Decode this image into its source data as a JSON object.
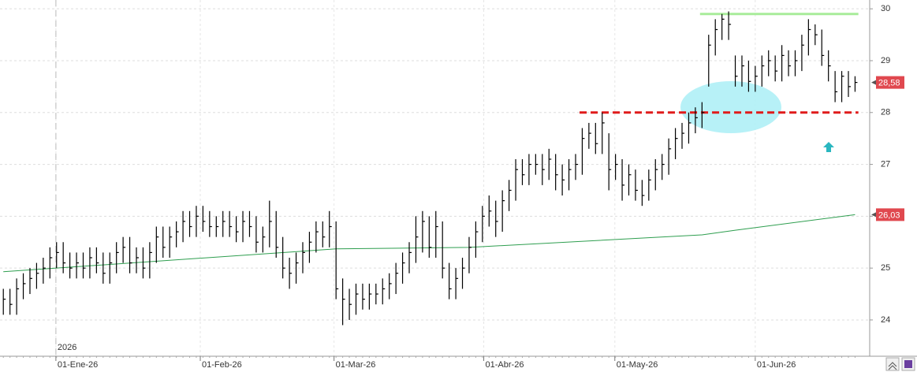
{
  "chart_data": {
    "type": "ohlc",
    "year_label": "2026",
    "xlim": [
      -0.5,
      130.2
    ],
    "xticks": [
      {
        "value": 7.9,
        "label": "01-Ene-26"
      },
      {
        "value": 29.6,
        "label": "01-Feb-26"
      },
      {
        "value": 49.7,
        "label": "01-Mar-26"
      },
      {
        "value": 72.2,
        "label": "01-Abr-26"
      },
      {
        "value": 91.9,
        "label": "01-May-26"
      },
      {
        "value": 113,
        "label": "01-Jun-26"
      }
    ],
    "ylim": [
      23.3,
      30.17
    ],
    "yticks": [
      24,
      25,
      26,
      27,
      28,
      29,
      30
    ],
    "grid": true,
    "color": "#000000",
    "high": [
      24.6,
      24.6,
      24.8,
      24.9,
      25.0,
      25.1,
      25.2,
      25.4,
      25.5,
      25.5,
      25.3,
      25.3,
      25.3,
      25.4,
      25.4,
      25.3,
      25.3,
      25.5,
      25.6,
      25.6,
      25.4,
      25.4,
      25.5,
      25.8,
      25.8,
      25.8,
      25.9,
      26.1,
      26.1,
      26.2,
      26.2,
      26.1,
      26.0,
      26.1,
      26.1,
      26.0,
      26.1,
      26.1,
      26.0,
      25.8,
      26.3,
      26.1,
      25.6,
      25.2,
      25.3,
      25.5,
      25.7,
      25.9,
      25.9,
      26.1,
      25.9,
      24.8,
      24.6,
      24.7,
      24.7,
      24.7,
      24.7,
      24.8,
      24.9,
      25.1,
      25.3,
      25.5,
      26.0,
      26.1,
      26.0,
      26.1,
      25.9,
      25.1,
      25.0,
      25.2,
      25.6,
      25.9,
      26.2,
      26.4,
      26.3,
      26.5,
      26.7,
      27.1,
      27.1,
      27.2,
      27.2,
      27.2,
      27.3,
      27.2,
      27.0,
      27.1,
      27.2,
      27.7,
      27.8,
      27.8,
      28.0,
      27.6,
      27.2,
      27.1,
      27.0,
      26.9,
      26.7,
      26.9,
      27.1,
      27.2,
      27.5,
      27.7,
      27.8,
      28.0,
      28.1,
      28.2,
      29.5,
      29.8,
      29.9,
      29.95,
      29.1,
      29.1,
      29.0,
      28.9,
      29.1,
      29.2,
      29.1,
      29.3,
      29.2,
      29.2,
      29.5,
      29.8,
      29.7,
      29.6,
      29.2,
      28.8,
      28.8,
      28.8,
      28.7
    ],
    "low": [
      24.1,
      24.1,
      24.1,
      24.4,
      24.5,
      24.6,
      24.7,
      24.8,
      25.0,
      24.9,
      24.8,
      24.8,
      24.8,
      24.8,
      24.9,
      24.7,
      24.7,
      24.9,
      25.1,
      24.9,
      24.9,
      24.8,
      24.8,
      25.1,
      25.2,
      25.2,
      25.4,
      25.5,
      25.6,
      25.6,
      25.7,
      25.6,
      25.6,
      25.6,
      25.6,
      25.5,
      25.5,
      25.6,
      25.3,
      25.3,
      25.4,
      25.2,
      24.8,
      24.6,
      24.7,
      24.9,
      25.1,
      25.3,
      25.4,
      25.4,
      24.4,
      23.9,
      24.0,
      24.1,
      24.2,
      24.2,
      24.3,
      24.3,
      24.4,
      24.5,
      24.7,
      24.9,
      25.1,
      25.3,
      25.2,
      25.2,
      24.8,
      24.4,
      24.4,
      24.6,
      24.9,
      25.2,
      25.5,
      25.8,
      25.6,
      25.7,
      26.1,
      26.3,
      26.6,
      26.6,
      26.8,
      26.6,
      26.7,
      26.5,
      26.4,
      26.5,
      26.7,
      26.8,
      27.3,
      27.2,
      27.2,
      26.5,
      26.7,
      26.3,
      26.4,
      26.3,
      26.2,
      26.3,
      26.5,
      26.7,
      26.8,
      27.1,
      27.3,
      27.4,
      27.6,
      27.7,
      28.5,
      29.1,
      29.4,
      29.4,
      28.5,
      28.5,
      28.4,
      28.4,
      28.5,
      28.7,
      28.6,
      28.6,
      28.7,
      28.7,
      28.8,
      29.1,
      29.3,
      28.9,
      28.6,
      28.2,
      28.2,
      28.3,
      28.4
    ],
    "close": [
      24.4,
      24.3,
      24.6,
      24.7,
      24.8,
      24.9,
      25.0,
      25.2,
      25.3,
      25.1,
      25.0,
      25.1,
      25.0,
      25.2,
      25.1,
      24.9,
      25.1,
      25.3,
      25.4,
      25.1,
      25.2,
      25.0,
      25.3,
      25.6,
      25.4,
      25.6,
      25.7,
      25.9,
      25.8,
      26.0,
      25.9,
      25.8,
      25.8,
      25.9,
      25.8,
      25.7,
      25.9,
      25.8,
      25.5,
      25.6,
      25.9,
      25.4,
      25.0,
      24.9,
      25.1,
      25.3,
      25.5,
      25.7,
      25.6,
      25.8,
      24.6,
      24.4,
      24.3,
      24.5,
      24.4,
      24.5,
      24.5,
      24.6,
      24.7,
      24.9,
      25.1,
      25.3,
      25.6,
      25.9,
      25.4,
      25.8,
      25.0,
      24.6,
      24.8,
      25.0,
      25.4,
      25.7,
      26.0,
      26.1,
      25.9,
      26.3,
      26.5,
      26.9,
      26.8,
      27.0,
      27.0,
      26.9,
      27.1,
      26.8,
      26.7,
      26.9,
      27.0,
      27.5,
      27.6,
      27.4,
      27.8,
      26.9,
      27.0,
      26.6,
      26.8,
      26.5,
      26.4,
      26.7,
      26.9,
      27.0,
      27.3,
      27.5,
      27.6,
      27.8,
      27.9,
      28.0,
      29.3,
      29.6,
      29.8,
      29.7,
      28.7,
      28.9,
      28.6,
      28.7,
      28.9,
      29.0,
      28.8,
      29.1,
      28.9,
      29.0,
      29.3,
      29.6,
      29.5,
      29.1,
      28.9,
      28.4,
      28.7,
      28.5,
      28.58
    ],
    "last_price": {
      "value": 28.58,
      "label": "28,58",
      "color": "#e0484f"
    },
    "moving_average": {
      "color": "#2e9e4f",
      "x": [
        0,
        50,
        70,
        105,
        110,
        128
      ],
      "values": [
        24.93,
        25.37,
        25.4,
        25.64,
        25.73,
        26.03
      ],
      "last": {
        "value": 26.03,
        "label": "26,03"
      }
    },
    "levels": [
      {
        "value": 28,
        "from": 86.6,
        "to": 128.5,
        "color": "#e01b1b",
        "dashed": true
      },
      {
        "value": 29.9,
        "from": 104.7,
        "to": 128.5,
        "color": "#a8ec9a",
        "dashed": false
      }
    ]
  }
}
